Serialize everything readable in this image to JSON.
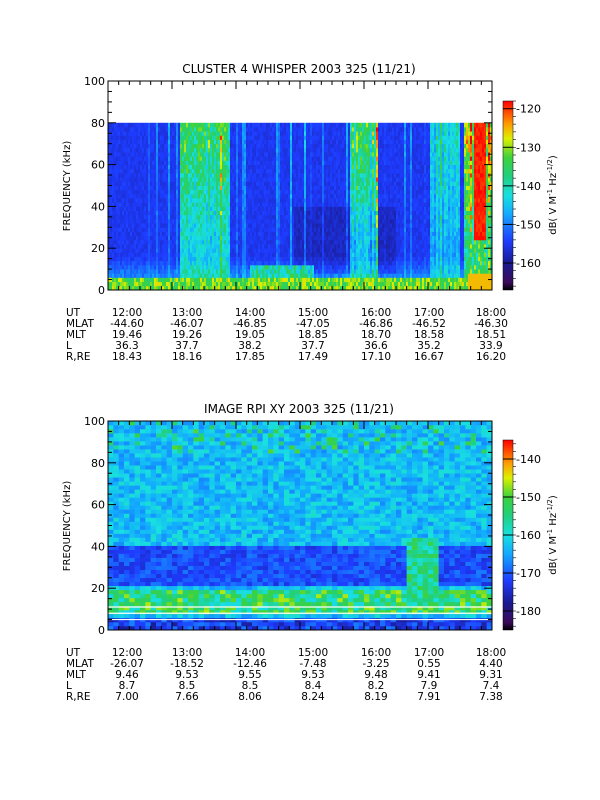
{
  "chart_data": [
    {
      "type": "heatmap",
      "title": "CLUSTER 4 WHISPER 2003 325 (11/21)",
      "ylabel": "FREQUENCY (kHz)",
      "ylim": [
        0,
        100
      ],
      "yticks": [
        "0",
        "20",
        "40",
        "60",
        "80",
        "100"
      ],
      "data_top_khz": 80,
      "xticks": [
        "12:00",
        "13:00",
        "14:00",
        "15:00",
        "16:00",
        "17:00",
        "18:00"
      ],
      "colorbar": {
        "label_html": "dB( V M<tspan baseline-shift='super' font-size='7'>-1</tspan> Hz<tspan baseline-shift='super' font-size='7'>-1/2</tspan>)",
        "range": [
          -167,
          -118
        ],
        "ticks": [
          "-120",
          "-130",
          "-140",
          "-150",
          "-160"
        ]
      },
      "orbit": {
        "labels": [
          "UT",
          "MLAT",
          "MLT",
          "L",
          "R,RE"
        ],
        "rows": [
          [
            "12:00",
            "13:00",
            "14:00",
            "15:00",
            "16:00",
            "17:00",
            "18:00"
          ],
          [
            "-44.60",
            "-46.07",
            "-46.85",
            "-47.05",
            "-46.86",
            "-46.52",
            "-46.30"
          ],
          [
            "19.46",
            "19.26",
            "19.05",
            "18.85",
            "18.70",
            "18.58",
            "18.51"
          ],
          [
            "36.3",
            "37.7",
            "38.2",
            "37.7",
            "36.6",
            "35.2",
            "33.9"
          ],
          [
            "18.43",
            "18.16",
            "17.85",
            "17.49",
            "17.10",
            "16.67",
            "16.20"
          ]
        ]
      },
      "spectrogram_description": "Dark blue background (~-160 dB) with yellow/green bands near 0-5 kHz, vertical bright streaks near 13:00-14:00, a bright band near 16:00-16:10, and strong emission (up to -120 dB) after 17:30."
    },
    {
      "type": "heatmap",
      "title": "IMAGE RPI XY 2003 325 (11/21)",
      "ylabel": "FREQUENCY (kHz)",
      "ylim": [
        0,
        100
      ],
      "yticks": [
        "0",
        "20",
        "40",
        "60",
        "80",
        "100"
      ],
      "xticks": [
        "12:00",
        "13:00",
        "14:00",
        "15:00",
        "16:00",
        "17:00",
        "18:00"
      ],
      "colorbar": {
        "label_html": "dB( V M<tspan baseline-shift='super' font-size='7'>-1</tspan> Hz<tspan baseline-shift='super' font-size='7'>-1/2</tspan>)",
        "range": [
          -185,
          -135
        ],
        "ticks": [
          "-140",
          "-150",
          "-160",
          "-170",
          "-180"
        ]
      },
      "orbit": {
        "labels": [
          "UT",
          "MLAT",
          "MLT",
          "L",
          "R,RE"
        ],
        "rows": [
          [
            "12:00",
            "13:00",
            "14:00",
            "15:00",
            "16:00",
            "17:00",
            "18:00"
          ],
          [
            "-26.07",
            "-18.52",
            "-12.46",
            "-7.48",
            "-3.25",
            "0.55",
            "4.40"
          ],
          [
            "9.46",
            "9.53",
            "9.55",
            "9.53",
            "9.48",
            "9.41",
            "9.31"
          ],
          [
            "8.7",
            "8.5",
            "8.5",
            "8.4",
            "8.2",
            "7.9",
            "7.4"
          ],
          [
            "7.00",
            "7.66",
            "8.06",
            "8.24",
            "8.19",
            "7.91",
            "7.38"
          ]
        ]
      },
      "spectrogram_description": "Blocky cyan/blue noisy spectrogram, dark blue band around 25-40 kHz, yellow/green band around 10-18 kHz, white horizontal lines near the bottom."
    }
  ]
}
